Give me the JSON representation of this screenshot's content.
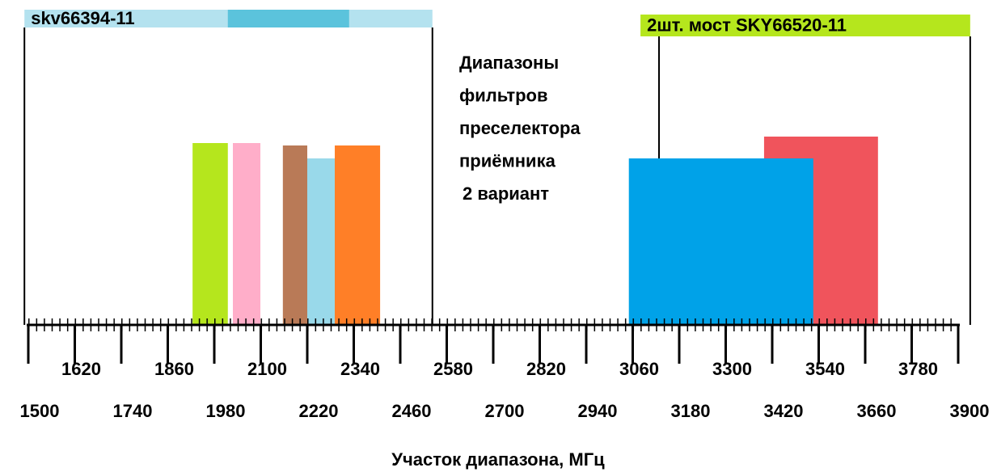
{
  "axis": {
    "label": "Участок диапазона, МГц",
    "xlim": [
      1500,
      3900
    ],
    "xticks": [
      1500,
      1620,
      1740,
      1860,
      1980,
      2100,
      2220,
      2340,
      2460,
      2580,
      2700,
      2820,
      2940,
      3060,
      3180,
      3300,
      3420,
      3540,
      3660,
      3780,
      3900
    ]
  },
  "ranges": [
    {
      "label": "skv66394-11",
      "start": 1490,
      "end": 2543,
      "color": "#b4e2ef",
      "highlight": [
        2015,
        2328
      ],
      "highlight_color": "#5bc3dc"
    },
    {
      "label": "2шт. мост SKY66520-11",
      "start": 3080,
      "end": 3931,
      "color": "#b5e61d"
    }
  ],
  "note": [
    "Диапазоны",
    "фильтров",
    "преселектора",
    "приёмника",
    "2 вариант"
  ],
  "bands": [
    {
      "start": 1924,
      "end": 2015,
      "color": "#b5e61d"
    },
    {
      "start": 2028,
      "end": 2099,
      "color": "#ffaec9"
    },
    {
      "start": 2157,
      "end": 2220,
      "color": "#b97a57"
    },
    {
      "start": 2220,
      "end": 2305,
      "color": "#99d9ea"
    },
    {
      "start": 2291,
      "end": 2408,
      "color": "#ff7f27"
    },
    {
      "start": 3399,
      "end": 3693,
      "color": "#f0545c"
    },
    {
      "start": 3050,
      "end": 3526,
      "color": "#00a2e8"
    }
  ]
}
